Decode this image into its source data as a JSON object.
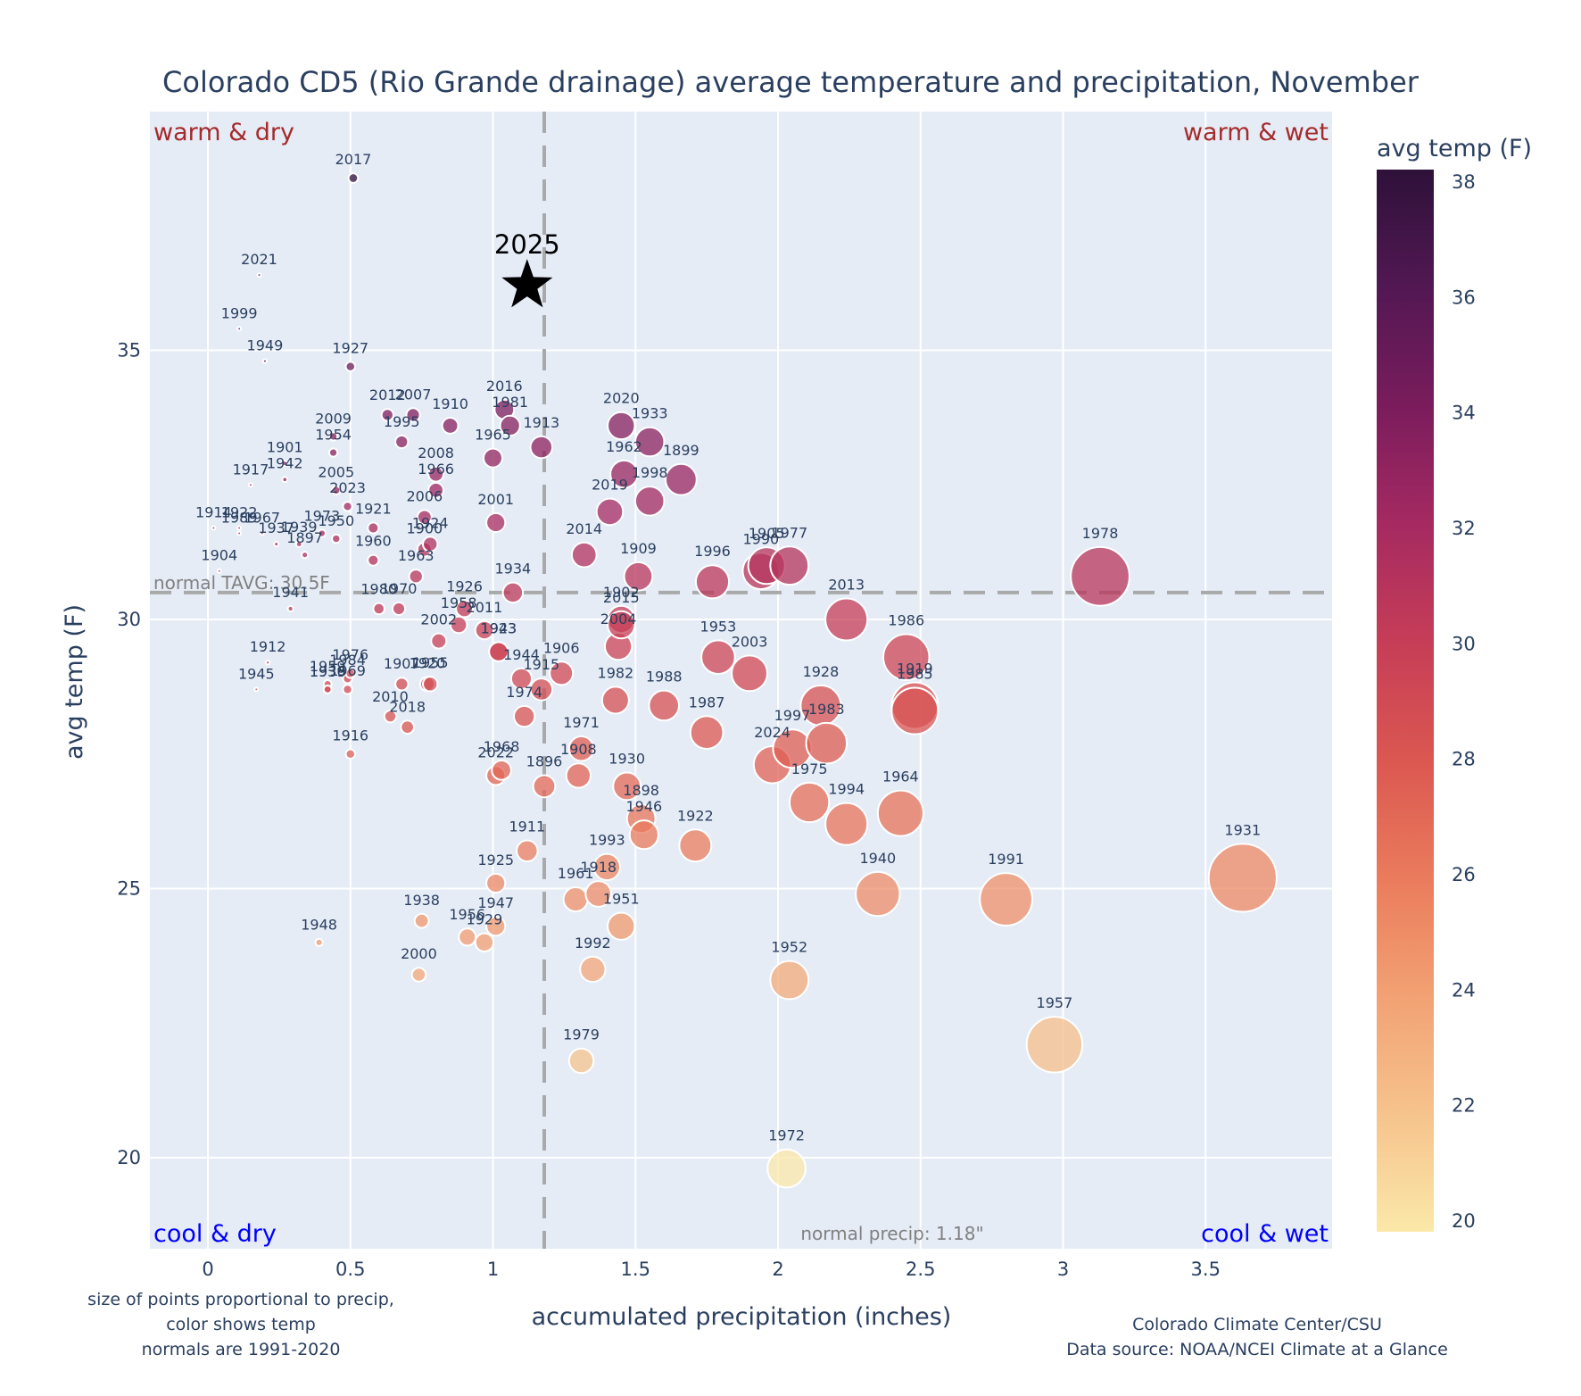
{
  "chart_data": {
    "type": "scatter",
    "title": "Colorado CD5 (Rio Grande drainage) average temperature and precipitation, November",
    "xlabel": "accumulated precipitation (inches)",
    "ylabel": "avg temp (F)",
    "xlim": [
      -0.21,
      3.95
    ],
    "ylim": [
      18.4,
      38.4
    ],
    "x_ticks": [
      0,
      0.5,
      1,
      1.5,
      2,
      2.5,
      3,
      3.5
    ],
    "x_tick_labels": [
      "0",
      "0.5",
      "1",
      "1.5",
      "2",
      "2.5",
      "3",
      "3.5"
    ],
    "y_ticks": [
      20,
      25,
      30,
      35
    ],
    "y_tick_labels": [
      "20",
      "25",
      "30",
      "35"
    ],
    "grid": true,
    "colorbar": {
      "title": "avg temp (F)",
      "range": [
        19.8,
        38.2
      ],
      "ticks": [
        20,
        22,
        24,
        26,
        28,
        30,
        32,
        34,
        36,
        38
      ],
      "tick_labels": [
        "20",
        "22",
        "24",
        "26",
        "28",
        "30",
        "32",
        "34",
        "36",
        "38"
      ],
      "colorscale": [
        "#fbe8a9",
        "#f6c38d",
        "#f2a173",
        "#ea7b5c",
        "#db5751",
        "#c63d57",
        "#a52a61",
        "#7a1c5c",
        "#521853",
        "#2e1139"
      ]
    },
    "reference_lines": {
      "normal_temp": 30.5,
      "normal_temp_label": "normal TAVG: 30.5F",
      "normal_precip": 1.18,
      "normal_precip_label": "normal precip: 1.18\""
    },
    "quadrant_labels": {
      "top_left": "warm & dry",
      "top_right": "warm & wet",
      "bottom_left": "cool & dry",
      "bottom_right": "cool & wet"
    },
    "highlight": {
      "label": "2025",
      "x": 1.12,
      "y": 36.2,
      "marker": "star"
    },
    "notes_left": [
      "size of points proportional to precip,",
      "color shows temp",
      "normals are 1991-2020"
    ],
    "notes_right": [
      "Colorado Climate Center/CSU",
      "Data source: NOAA/NCEI Climate at a Glance"
    ],
    "points": [
      {
        "year": "2017",
        "x": 0.51,
        "y": 38.2
      },
      {
        "year": "2021",
        "x": 0.18,
        "y": 36.4
      },
      {
        "year": "1999",
        "x": 0.11,
        "y": 35.4
      },
      {
        "year": "1949",
        "x": 0.2,
        "y": 34.8
      },
      {
        "year": "1927",
        "x": 0.5,
        "y": 34.7
      },
      {
        "year": "2012",
        "x": 0.63,
        "y": 33.8
      },
      {
        "year": "2007",
        "x": 0.72,
        "y": 33.8
      },
      {
        "year": "1995",
        "x": 0.68,
        "y": 33.3
      },
      {
        "year": "1910",
        "x": 0.85,
        "y": 33.6
      },
      {
        "year": "2009",
        "x": 0.44,
        "y": 33.4
      },
      {
        "year": "1954",
        "x": 0.44,
        "y": 33.1
      },
      {
        "year": "2016",
        "x": 1.04,
        "y": 33.9
      },
      {
        "year": "1981",
        "x": 1.06,
        "y": 33.6
      },
      {
        "year": "1965",
        "x": 1.0,
        "y": 33.0
      },
      {
        "year": "1913",
        "x": 1.17,
        "y": 33.2
      },
      {
        "year": "2008",
        "x": 0.8,
        "y": 32.7
      },
      {
        "year": "1966",
        "x": 0.8,
        "y": 32.4
      },
      {
        "year": "1901",
        "x": 0.27,
        "y": 32.9
      },
      {
        "year": "1942",
        "x": 0.27,
        "y": 32.6
      },
      {
        "year": "1917",
        "x": 0.15,
        "y": 32.5
      },
      {
        "year": "2005",
        "x": 0.45,
        "y": 32.4
      },
      {
        "year": "2023",
        "x": 0.49,
        "y": 32.1
      },
      {
        "year": "2006",
        "x": 0.76,
        "y": 31.9
      },
      {
        "year": "1921",
        "x": 0.58,
        "y": 31.7
      },
      {
        "year": "2001",
        "x": 1.01,
        "y": 31.8
      },
      {
        "year": "1944a",
        "label": "1914",
        "x": 0.02,
        "y": 31.7
      },
      {
        "year": "1922",
        "x": 0.11,
        "y": 31.7
      },
      {
        "year": "1989",
        "x": 0.11,
        "y": 31.6
      },
      {
        "year": "1967",
        "x": 0.19,
        "y": 31.6
      },
      {
        "year": "1937",
        "x": 0.24,
        "y": 31.4
      },
      {
        "year": "1939",
        "x": 0.32,
        "y": 31.4
      },
      {
        "year": "1973",
        "x": 0.4,
        "y": 31.6
      },
      {
        "year": "1950",
        "x": 0.45,
        "y": 31.5
      },
      {
        "year": "1897",
        "x": 0.34,
        "y": 31.2
      },
      {
        "year": "1924",
        "x": 0.78,
        "y": 31.4
      },
      {
        "year": "1900",
        "x": 0.76,
        "y": 31.3
      },
      {
        "year": "1960",
        "x": 0.58,
        "y": 31.1
      },
      {
        "year": "1963",
        "x": 0.73,
        "y": 30.8
      },
      {
        "year": "1904",
        "x": 0.04,
        "y": 30.9
      },
      {
        "year": "1934",
        "x": 1.07,
        "y": 30.5
      },
      {
        "year": "2014",
        "x": 1.32,
        "y": 31.2
      },
      {
        "year": "2020",
        "x": 1.45,
        "y": 33.6
      },
      {
        "year": "1933",
        "x": 1.55,
        "y": 33.3
      },
      {
        "year": "1962",
        "x": 1.46,
        "y": 32.7
      },
      {
        "year": "1899",
        "x": 1.66,
        "y": 32.6
      },
      {
        "year": "1998",
        "x": 1.55,
        "y": 32.2
      },
      {
        "year": "2019",
        "x": 1.41,
        "y": 32.0
      },
      {
        "year": "1909",
        "x": 1.51,
        "y": 30.8
      },
      {
        "year": "1996",
        "x": 1.77,
        "y": 30.7
      },
      {
        "year": "1990",
        "x": 1.94,
        "y": 30.9
      },
      {
        "year": "1905",
        "x": 1.96,
        "y": 31.0
      },
      {
        "year": "1977",
        "x": 2.04,
        "y": 31.0
      },
      {
        "year": "1978",
        "x": 3.13,
        "y": 30.8
      },
      {
        "year": "1941",
        "x": 0.29,
        "y": 30.2
      },
      {
        "year": "1980",
        "x": 0.6,
        "y": 30.2
      },
      {
        "year": "1970",
        "x": 0.67,
        "y": 30.2
      },
      {
        "year": "1926",
        "x": 0.9,
        "y": 30.2
      },
      {
        "year": "1958",
        "x": 0.88,
        "y": 29.9
      },
      {
        "year": "2011",
        "x": 0.97,
        "y": 29.8
      },
      {
        "year": "2002",
        "x": 0.81,
        "y": 29.6
      },
      {
        "year": "1902",
        "x": 1.45,
        "y": 30.0
      },
      {
        "year": "2015",
        "x": 1.45,
        "y": 29.9
      },
      {
        "year": "2004",
        "x": 1.44,
        "y": 29.5
      },
      {
        "year": "2013",
        "x": 2.24,
        "y": 30.0
      },
      {
        "year": "1943",
        "x": 1.02,
        "y": 29.4
      },
      {
        "year": "1923",
        "x": 1.02,
        "y": 29.4
      },
      {
        "year": "1912",
        "x": 0.21,
        "y": 29.2
      },
      {
        "year": "1945",
        "x": 0.17,
        "y": 28.7
      },
      {
        "year": "1959",
        "x": 0.42,
        "y": 28.8
      },
      {
        "year": "1976",
        "x": 0.5,
        "y": 29.0
      },
      {
        "year": "1984",
        "x": 0.49,
        "y": 28.9
      },
      {
        "year": "1936",
        "x": 0.42,
        "y": 28.7
      },
      {
        "year": "1939b",
        "label": "1939",
        "x": 0.42,
        "y": 28.7
      },
      {
        "year": "1969",
        "x": 0.49,
        "y": 28.7
      },
      {
        "year": "1907",
        "x": 0.68,
        "y": 28.8
      },
      {
        "year": "1920",
        "x": 0.77,
        "y": 28.8
      },
      {
        "year": "1955",
        "x": 0.78,
        "y": 28.8
      },
      {
        "year": "1906",
        "x": 1.24,
        "y": 29.0
      },
      {
        "year": "1944",
        "x": 1.1,
        "y": 28.9
      },
      {
        "year": "1915",
        "x": 1.17,
        "y": 28.7
      },
      {
        "year": "1953",
        "x": 1.79,
        "y": 29.3
      },
      {
        "year": "2003",
        "x": 1.9,
        "y": 29.0
      },
      {
        "year": "1986",
        "x": 2.45,
        "y": 29.3
      },
      {
        "year": "1982",
        "x": 1.43,
        "y": 28.5
      },
      {
        "year": "1988",
        "x": 1.6,
        "y": 28.4
      },
      {
        "year": "1919",
        "x": 2.48,
        "y": 28.4
      },
      {
        "year": "1985",
        "x": 2.48,
        "y": 28.3
      },
      {
        "year": "1928",
        "x": 2.15,
        "y": 28.4
      },
      {
        "year": "2010",
        "x": 0.64,
        "y": 28.2
      },
      {
        "year": "2018",
        "x": 0.7,
        "y": 28.0
      },
      {
        "year": "1974",
        "x": 1.11,
        "y": 28.2
      },
      {
        "year": "1987",
        "x": 1.75,
        "y": 27.9
      },
      {
        "year": "1997",
        "x": 2.05,
        "y": 27.6
      },
      {
        "year": "1983",
        "x": 2.17,
        "y": 27.7
      },
      {
        "year": "1916",
        "x": 0.5,
        "y": 27.5
      },
      {
        "year": "1971",
        "x": 1.31,
        "y": 27.6
      },
      {
        "year": "2024",
        "x": 1.98,
        "y": 27.3
      },
      {
        "year": "1968",
        "x": 1.03,
        "y": 27.2
      },
      {
        "year": "2022",
        "x": 1.01,
        "y": 27.1
      },
      {
        "year": "1908",
        "x": 1.3,
        "y": 27.1
      },
      {
        "year": "1896",
        "x": 1.18,
        "y": 26.9
      },
      {
        "year": "1930",
        "x": 1.47,
        "y": 26.9
      },
      {
        "year": "1975",
        "x": 2.11,
        "y": 26.6
      },
      {
        "year": "1964",
        "x": 2.43,
        "y": 26.4
      },
      {
        "year": "1898",
        "x": 1.52,
        "y": 26.3
      },
      {
        "year": "1946",
        "x": 1.53,
        "y": 26.0
      },
      {
        "year": "1994",
        "x": 2.24,
        "y": 26.2
      },
      {
        "year": "1922b",
        "label": "1922",
        "x": 1.71,
        "y": 25.8
      },
      {
        "year": "1911",
        "x": 1.12,
        "y": 25.7
      },
      {
        "year": "1993",
        "x": 1.4,
        "y": 25.4
      },
      {
        "year": "1918",
        "x": 1.37,
        "y": 24.9
      },
      {
        "year": "1961",
        "x": 1.29,
        "y": 24.8
      },
      {
        "year": "1925",
        "x": 1.01,
        "y": 25.1
      },
      {
        "year": "1940",
        "x": 2.35,
        "y": 24.9
      },
      {
        "year": "1991",
        "x": 2.8,
        "y": 24.8
      },
      {
        "year": "1931",
        "x": 3.63,
        "y": 25.2
      },
      {
        "year": "1951",
        "x": 1.45,
        "y": 24.3
      },
      {
        "year": "1938",
        "x": 0.75,
        "y": 24.4
      },
      {
        "year": "1947",
        "x": 1.01,
        "y": 24.3
      },
      {
        "year": "1956",
        "x": 0.91,
        "y": 24.1
      },
      {
        "year": "1929",
        "x": 0.97,
        "y": 24.0
      },
      {
        "year": "1948",
        "x": 0.39,
        "y": 24.0
      },
      {
        "year": "2000",
        "x": 0.74,
        "y": 23.4
      },
      {
        "year": "1992",
        "x": 1.35,
        "y": 23.5
      },
      {
        "year": "1952",
        "x": 2.04,
        "y": 23.3
      },
      {
        "year": "1957",
        "x": 2.97,
        "y": 22.1
      },
      {
        "year": "1979",
        "x": 1.31,
        "y": 21.8
      },
      {
        "year": "1972",
        "x": 2.03,
        "y": 19.8
      }
    ]
  }
}
